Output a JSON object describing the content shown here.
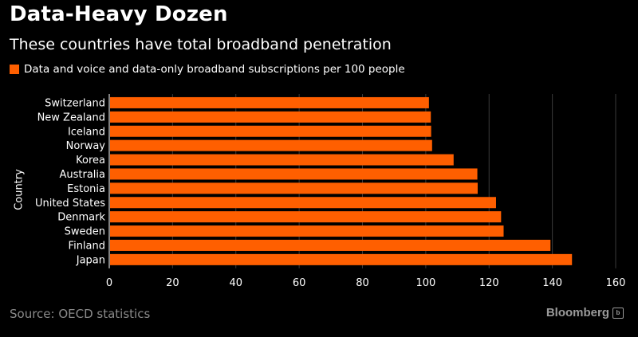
{
  "title": "Data-Heavy Dozen",
  "subtitle": "These countries have total broadband penetration",
  "legend": {
    "label": "Data and voice and data-only broadband subscriptions per 100 people",
    "color": "#ff5f00"
  },
  "source": "Source: OECD statistics",
  "brand": {
    "name": "Bloomberg",
    "icon": "bloomberg-logo-icon"
  },
  "chart_data": {
    "type": "bar",
    "orientation": "horizontal",
    "title": "Data-Heavy Dozen",
    "subtitle": "These countries have total broadband penetration",
    "ylabel": "Country",
    "xlabel": "",
    "xlim": [
      0,
      160
    ],
    "xticks": [
      0,
      20,
      40,
      60,
      80,
      100,
      120,
      140,
      160
    ],
    "grid": true,
    "legend_position": "top-left",
    "bar_color": "#ff5f00",
    "categories": [
      "Switzerland",
      "New Zealand",
      "Iceland",
      "Norway",
      "Korea",
      "Australia",
      "Estonia",
      "United States",
      "Denmark",
      "Sweden",
      "Finland",
      "Japan"
    ],
    "series": [
      {
        "name": "Data and voice and data-only broadband subscriptions per 100 people",
        "values": [
          101.0,
          101.6,
          101.7,
          102.0,
          108.8,
          116.3,
          116.4,
          122.2,
          123.8,
          124.6,
          139.4,
          146.2
        ]
      }
    ]
  }
}
